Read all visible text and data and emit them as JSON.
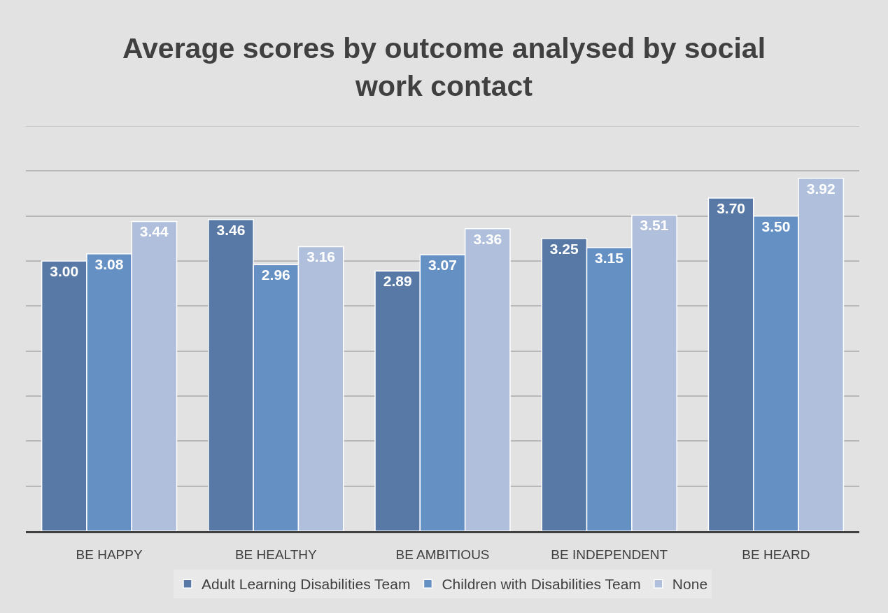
{
  "chart_data": {
    "type": "bar",
    "title": "Average scores by outcome analysed by social work contact",
    "categories": [
      "BE HAPPY",
      "BE HEALTHY",
      "BE AMBITIOUS",
      "BE INDEPENDENT",
      "BE HEARD"
    ],
    "series": [
      {
        "name": "Adult Learning Disabilities Team",
        "color": "#5878a6",
        "values": [
          3.0,
          3.46,
          2.89,
          3.25,
          3.7
        ],
        "value_labels": [
          "3.00",
          "3.46",
          "2.89",
          "3.25",
          "3.70"
        ]
      },
      {
        "name": "Children with Disabilities Team",
        "color": "#6590c4",
        "values": [
          3.08,
          2.96,
          3.07,
          3.15,
          3.5
        ],
        "value_labels": [
          "3.08",
          "2.96",
          "3.07",
          "3.15",
          "3.50"
        ]
      },
      {
        "name": "None",
        "color": "#b0bfdb",
        "values": [
          3.44,
          3.16,
          3.36,
          3.51,
          3.92
        ],
        "value_labels": [
          "3.44",
          "3.16",
          "3.36",
          "3.51",
          "3.92"
        ]
      }
    ],
    "ylim": [
      0,
      4.5
    ],
    "yticks": [
      {
        "value": 0.5,
        "label": null
      },
      {
        "value": 1,
        "label": null
      },
      {
        "value": 1.5,
        "label": null
      },
      {
        "value": 2,
        "label": null
      },
      {
        "value": 2.5,
        "label": null
      },
      {
        "value": 3,
        "label": null
      },
      {
        "value": 3.5,
        "label": null
      },
      {
        "value": 4,
        "label": null
      },
      {
        "value": 4.5,
        "label": null
      }
    ],
    "grid": "y",
    "legend": "bottom",
    "tick_labels": "x"
  }
}
